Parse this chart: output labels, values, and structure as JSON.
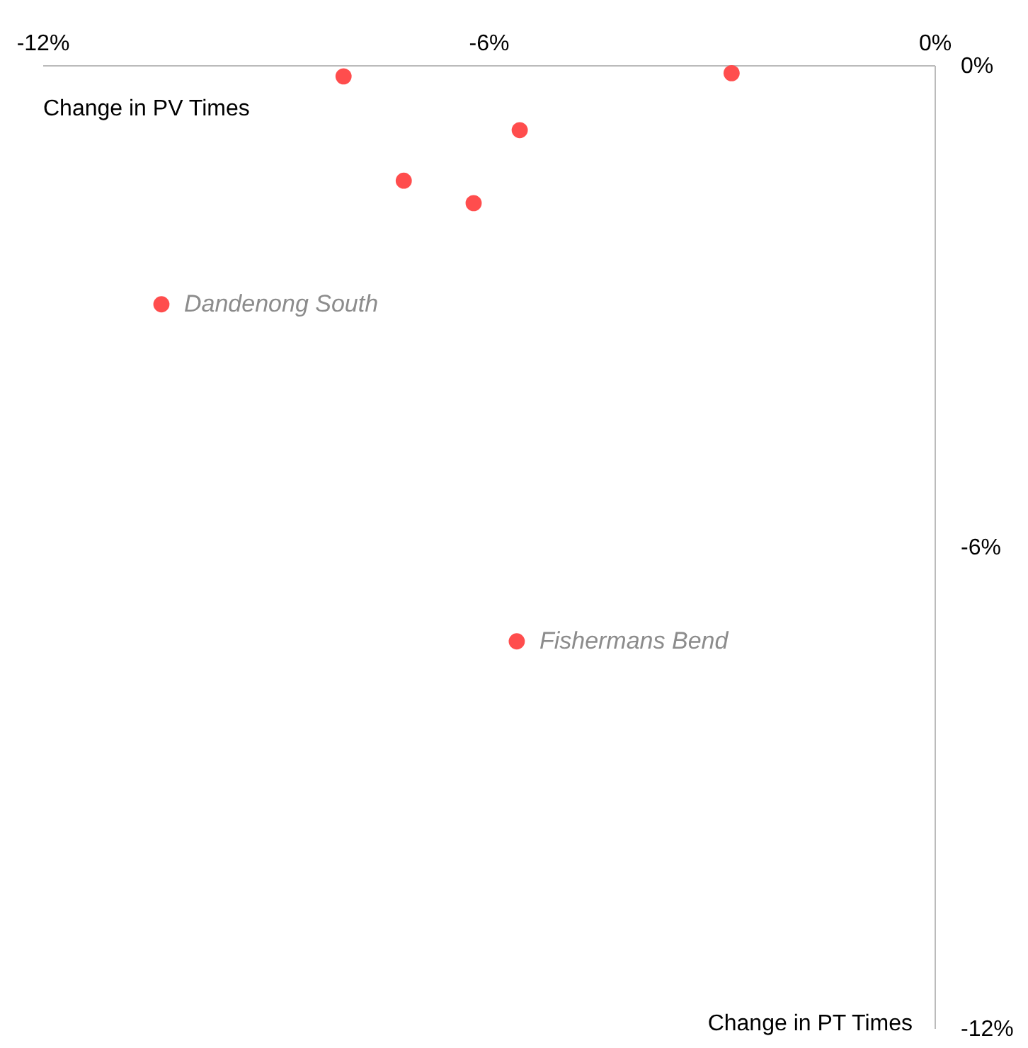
{
  "chart_data": {
    "type": "scatter",
    "xlabel": "Change in PV Times",
    "ylabel": "Change in PT Times",
    "x": [
      -7.95,
      -2.73,
      -5.58,
      -7.14,
      -6.2,
      -10.4,
      -5.62
    ],
    "values": [
      -0.14,
      -0.1,
      -0.81,
      -1.44,
      -1.72,
      -2.98,
      -7.18
    ],
    "color": "#ff4d4d",
    "marker": "circle",
    "grid": false,
    "xlim": [
      -12,
      0
    ],
    "ylim": [
      -12,
      0
    ],
    "xticks": [
      {
        "value": -12,
        "label": "-12%"
      },
      {
        "value": -6,
        "label": "-6%"
      },
      {
        "value": 0,
        "label": "0%"
      }
    ],
    "yticks": [
      {
        "value": -12,
        "label": "-12%"
      },
      {
        "value": -6,
        "label": "-6%"
      },
      {
        "value": 0,
        "label": "0%"
      }
    ],
    "annotations": [
      {
        "text": "Dandenong South",
        "x": -10.4,
        "y": -2.98
      },
      {
        "text": "Fishermans Bend",
        "x": -5.62,
        "y": -7.18
      }
    ]
  }
}
